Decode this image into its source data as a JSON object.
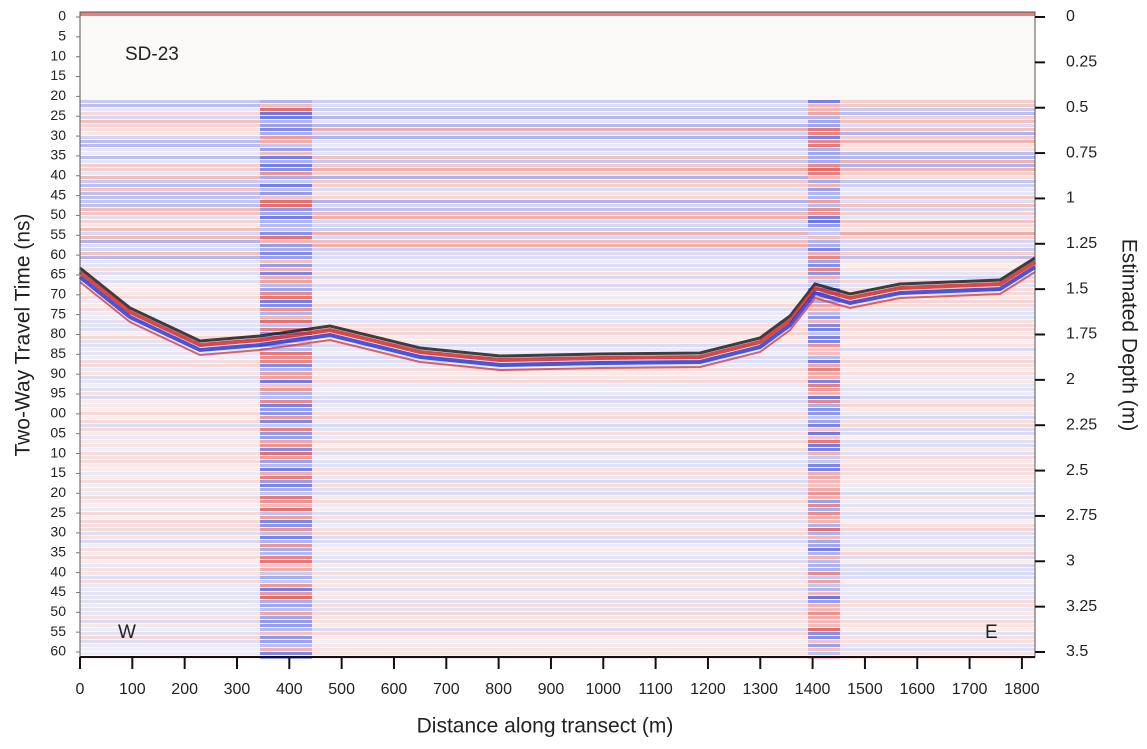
{
  "chart_data": {
    "type": "radargram",
    "annotations": [
      "SD-23",
      "W",
      "E"
    ],
    "x_label": "Distance along transect  (m)",
    "y_label": "Two-Way Travel Time (ns)",
    "y2_label": "Estimated Depth (m)",
    "xlim": [
      0,
      1825
    ],
    "xticks": [
      0,
      100,
      200,
      300,
      400,
      500,
      600,
      700,
      800,
      900,
      1000,
      1100,
      1200,
      1300,
      1400,
      1500,
      1600,
      1700,
      1800
    ],
    "ylim": [
      160,
      0
    ],
    "yticks": [
      0,
      5,
      10,
      15,
      20,
      25,
      30,
      35,
      40,
      45,
      50,
      55,
      60,
      65,
      70,
      75,
      80,
      85,
      90,
      95,
      {
        "value": 100,
        "label": "00"
      },
      {
        "value": 105,
        "label": "05"
      },
      {
        "value": 110,
        "label": "10"
      },
      {
        "value": 115,
        "label": "15"
      },
      {
        "value": 120,
        "label": "20"
      },
      {
        "value": 125,
        "label": "25"
      },
      {
        "value": 130,
        "label": "30"
      },
      {
        "value": 135,
        "label": "35"
      },
      {
        "value": 140,
        "label": "40"
      },
      {
        "value": 145,
        "label": "45"
      },
      {
        "value": 150,
        "label": "50"
      },
      {
        "value": 155,
        "label": "55"
      },
      {
        "value": 160,
        "label": "60"
      }
    ],
    "y2lim": [
      3.5,
      0
    ],
    "y2ticks": [
      0,
      0.25,
      0.5,
      0.75,
      1,
      1.25,
      1.5,
      1.75,
      2,
      2.25,
      2.5,
      2.75,
      3,
      3.25,
      3.5
    ]
  }
}
